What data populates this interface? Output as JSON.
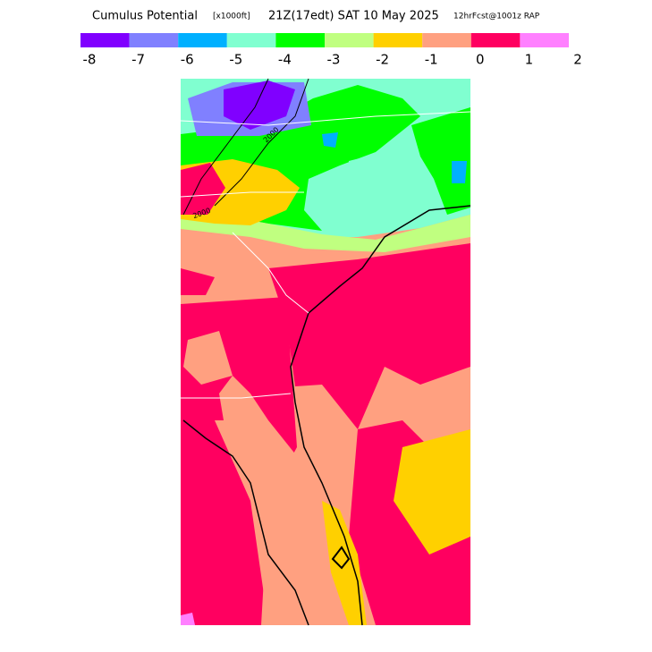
{
  "title": {
    "name": "Cumulus Potential",
    "units": "[x1000ft]",
    "time": "21Z(17edt) SAT 10 May 2025",
    "run": "12hrFcst@1001z RAP"
  },
  "legend": {
    "colors": [
      "#8000ff",
      "#8080ff",
      "#00b0ff",
      "#80ffd0",
      "#00ff00",
      "#c0ff80",
      "#ffd000",
      "#ffa080",
      "#ff0060",
      "#ff80ff"
    ],
    "ticks": [
      -8,
      -7,
      -6,
      -5,
      -4,
      -3,
      -2,
      -1,
      0,
      1,
      2
    ]
  },
  "contour_labels": [
    "2000",
    "2000"
  ]
}
